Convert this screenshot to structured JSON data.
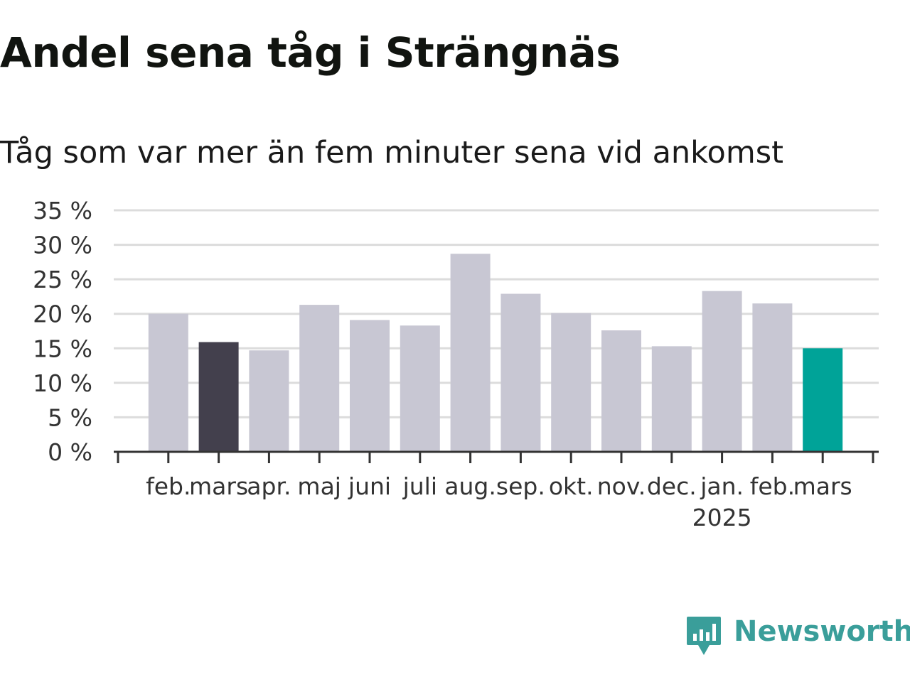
{
  "title": "Andel sena tåg i Strängnäs",
  "subtitle": "Tåg som var mer än fem minuter sena vid ankomst",
  "brand": {
    "name": "Newsworthy",
    "icon": "newsworthy-logo-icon",
    "color": "#3a9e9a"
  },
  "colors": {
    "default_bar": "#c8c7d3",
    "highlight_previous": "#43404d",
    "highlight_current": "#00a398",
    "grid": "#dcdcdc",
    "axis": "#333333"
  },
  "chart_data": {
    "type": "bar",
    "title": "Andel sena tåg i Strängnäs",
    "subtitle": "Tåg som var mer än fem minuter sena vid ankomst",
    "categories": [
      "feb.",
      "mars",
      "apr.",
      "maj",
      "juni",
      "juli",
      "aug.",
      "sep.",
      "okt.",
      "nov.",
      "dec.",
      "jan.",
      "feb.",
      "mars"
    ],
    "year_labels": [
      {
        "category_index": 11,
        "label": "2025"
      }
    ],
    "values": [
      20.0,
      15.9,
      14.7,
      21.3,
      19.1,
      18.3,
      28.7,
      22.9,
      20.1,
      17.6,
      15.3,
      23.3,
      21.5,
      15.0
    ],
    "bar_colors": [
      "#c8c7d3",
      "#43404d",
      "#c8c7d3",
      "#c8c7d3",
      "#c8c7d3",
      "#c8c7d3",
      "#c8c7d3",
      "#c8c7d3",
      "#c8c7d3",
      "#c8c7d3",
      "#c8c7d3",
      "#c8c7d3",
      "#c8c7d3",
      "#00a398"
    ],
    "y_ticks": [
      "0 %",
      "5 %",
      "10 %",
      "15 %",
      "20 %",
      "25 %",
      "30 %",
      "35 %"
    ],
    "ylim": [
      0,
      35
    ],
    "y_unit": "%",
    "grid": true,
    "legend": "none"
  }
}
